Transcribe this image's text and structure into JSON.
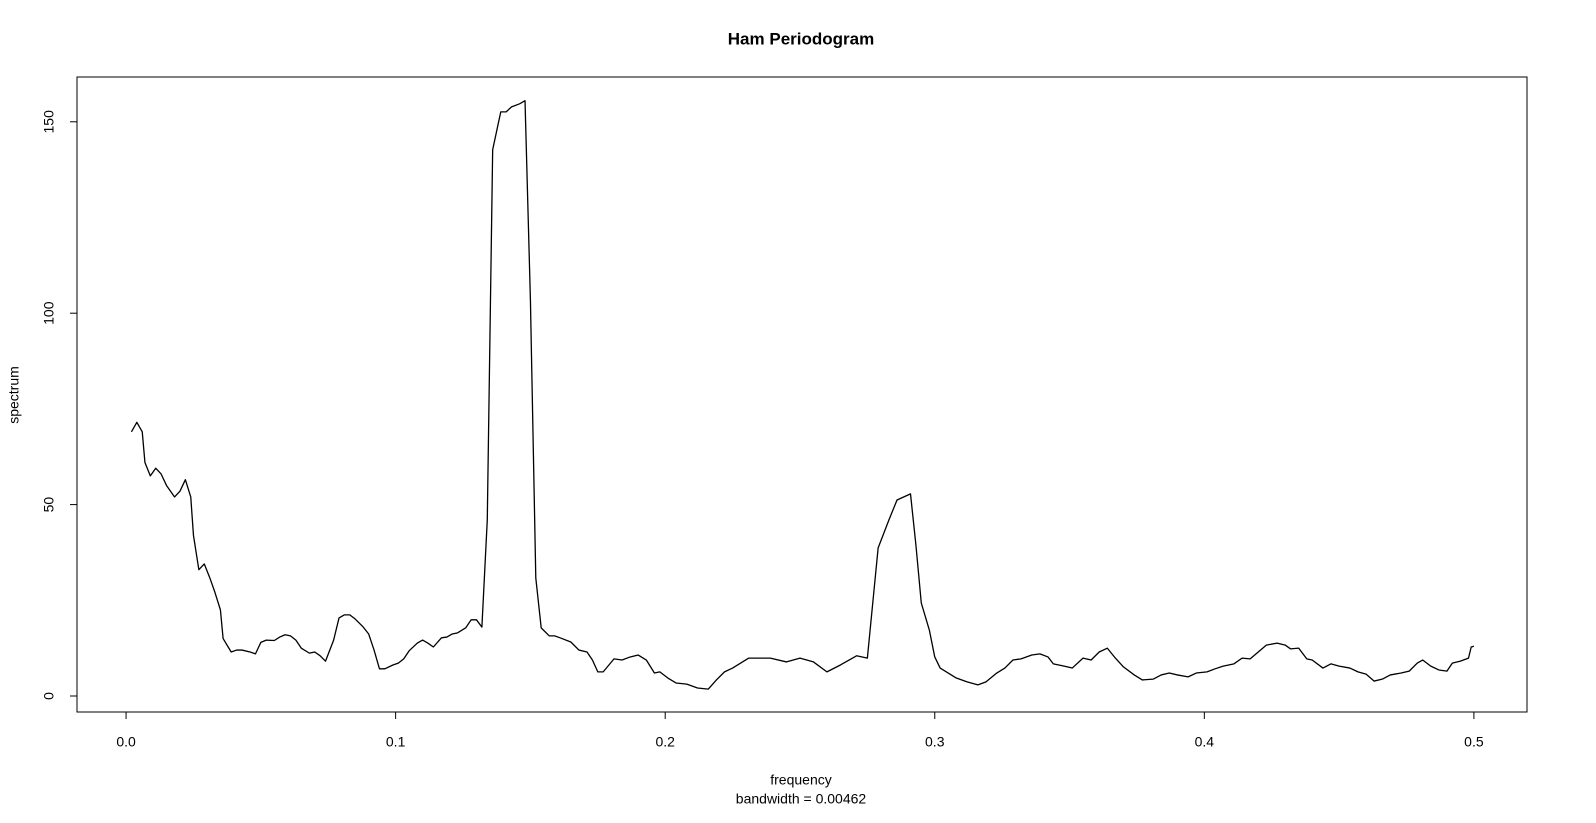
{
  "chart_data": {
    "type": "line",
    "title": "Ham Periodogram",
    "x_label": "frequency",
    "subtitle": "bandwidth = 0.00462",
    "y_label": "spectrum",
    "xlim": [
      -0.0182,
      0.5197
    ],
    "ylim": [
      -4.18,
      161.7
    ],
    "xticks": [
      {
        "value": 0,
        "label": "0.0"
      },
      0.1,
      0.2,
      0.3,
      0.4,
      0.5
    ],
    "yticks": [
      0,
      50,
      100,
      150
    ],
    "grid": false,
    "x": [
      0.002,
      0.004,
      0.006,
      0.007,
      0.009,
      0.011,
      0.013,
      0.015,
      0.018,
      0.02,
      0.022,
      0.024,
      0.025,
      0.027,
      0.029,
      0.031,
      0.033,
      0.035,
      0.036,
      0.039,
      0.041,
      0.043,
      0.046,
      0.048,
      0.05,
      0.052,
      0.055,
      0.057,
      0.059,
      0.061,
      0.063,
      0.065,
      0.068,
      0.07,
      0.072,
      0.074,
      0.077,
      0.079,
      0.081,
      0.083,
      0.085,
      0.088,
      0.09,
      0.092,
      0.094,
      0.096,
      0.099,
      0.101,
      0.103,
      0.105,
      0.108,
      0.11,
      0.112,
      0.114,
      0.117,
      0.119,
      0.121,
      0.123,
      0.126,
      0.128,
      0.13,
      0.132,
      0.134,
      0.136,
      0.139,
      0.141,
      0.143,
      0.146,
      0.148,
      0.15,
      0.152,
      0.154,
      0.157,
      0.159,
      0.161,
      0.165,
      0.168,
      0.171,
      0.173,
      0.175,
      0.177,
      0.181,
      0.184,
      0.187,
      0.19,
      0.193,
      0.196,
      0.198,
      0.201,
      0.204,
      0.208,
      0.212,
      0.216,
      0.219,
      0.222,
      0.225,
      0.231,
      0.239,
      0.245,
      0.25,
      0.255,
      0.26,
      0.265,
      0.271,
      0.275,
      0.279,
      0.283,
      0.286,
      0.291,
      0.293,
      0.295,
      0.298,
      0.3,
      0.302,
      0.305,
      0.308,
      0.312,
      0.316,
      0.319,
      0.323,
      0.326,
      0.329,
      0.332,
      0.336,
      0.339,
      0.342,
      0.344,
      0.348,
      0.351,
      0.355,
      0.358,
      0.361,
      0.364,
      0.367,
      0.37,
      0.374,
      0.377,
      0.381,
      0.384,
      0.387,
      0.39,
      0.394,
      0.397,
      0.401,
      0.404,
      0.407,
      0.411,
      0.414,
      0.417,
      0.42,
      0.423,
      0.427,
      0.43,
      0.432,
      0.435,
      0.438,
      0.44,
      0.444,
      0.447,
      0.45,
      0.454,
      0.457,
      0.46,
      0.463,
      0.466,
      0.469,
      0.473,
      0.476,
      0.479,
      0.481,
      0.484,
      0.487,
      0.49,
      0.492,
      0.495,
      0.498,
      0.499,
      0.5
    ],
    "series": [
      {
        "color": "#000000",
        "values": [
          69,
          71.5,
          69,
          61,
          57.5,
          59.5,
          58,
          55,
          52,
          53.5,
          56.5,
          52,
          42,
          33,
          34.5,
          31,
          27,
          22.5,
          15,
          11.5,
          12,
          12,
          11.5,
          11,
          14,
          14.6,
          14.5,
          15.4,
          16,
          15.7,
          14.6,
          12.5,
          11.2,
          11.5,
          10.5,
          9.1,
          14.6,
          20.4,
          21.2,
          21.2,
          20.1,
          18,
          16.2,
          12,
          7.1,
          7.1,
          8.1,
          8.6,
          9.7,
          11.8,
          13.8,
          14.6,
          13.8,
          12.8,
          15.2,
          15.4,
          16.2,
          16.5,
          17.8,
          19.9,
          19.9,
          18,
          46,
          142.7,
          152.6,
          152.6,
          153.9,
          154.7,
          155.5,
          103.5,
          30.8,
          17.8,
          15.7,
          15.7,
          15.2,
          14.1,
          12,
          11.5,
          9.4,
          6.3,
          6.3,
          9.7,
          9.4,
          10.2,
          10.7,
          9.4,
          6,
          6.3,
          4.7,
          3.4,
          3.1,
          2.1,
          1.8,
          4.2,
          6.3,
          7.3,
          9.9,
          9.9,
          8.9,
          9.9,
          8.9,
          6.3,
          8.1,
          10.5,
          9.9,
          38.7,
          46,
          51.2,
          52.8,
          39.5,
          24.3,
          17.2,
          10.2,
          7.3,
          6,
          4.7,
          3.7,
          2.9,
          3.7,
          6,
          7.3,
          9.4,
          9.7,
          10.7,
          11,
          10.2,
          8.4,
          7.8,
          7.3,
          9.9,
          9.4,
          11.5,
          12.5,
          9.9,
          7.6,
          5.5,
          4.2,
          4.4,
          5.5,
          6,
          5.5,
          5,
          6,
          6.3,
          7.1,
          7.8,
          8.4,
          9.9,
          9.7,
          11.5,
          13.3,
          13.8,
          13.3,
          12.3,
          12.5,
          9.7,
          9.4,
          7.3,
          8.4,
          7.8,
          7.3,
          6.3,
          5.7,
          3.9,
          4.4,
          5.5,
          6,
          6.5,
          8.6,
          9.4,
          7.8,
          6.8,
          6.5,
          8.6,
          9.1,
          9.9,
          12.8,
          13
        ]
      }
    ]
  }
}
